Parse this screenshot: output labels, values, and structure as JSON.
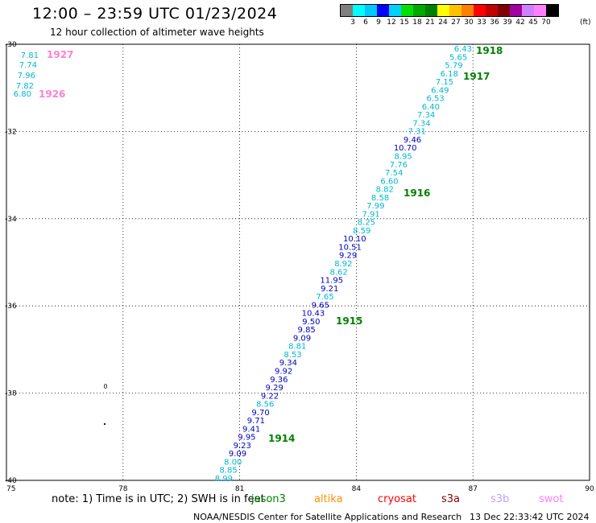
{
  "header": {
    "title": "12:00 – 23:59 UTC 01/23/2024",
    "subtitle": "12 hour collection of altimeter wave heights"
  },
  "legend": {
    "colors": [
      "#7f7f7f",
      "#00ffff",
      "#00c8ff",
      "#0000ff",
      "#00d0ff",
      "#00e000",
      "#00a800",
      "#008000",
      "#ffff00",
      "#ffc000",
      "#ff8000",
      "#ff0000",
      "#c00000",
      "#800000",
      "#a000a0",
      "#d080ff",
      "#ff80ff",
      "#000000"
    ],
    "tick_labels": [
      "3",
      "6",
      "9",
      "12",
      "15",
      "18",
      "21",
      "24",
      "27",
      "30",
      "33",
      "36",
      "39",
      "42",
      "45",
      "70"
    ],
    "unit": "(ft)"
  },
  "map": {
    "x_axis": {
      "min": 75,
      "max": 90,
      "ticks": [
        "75",
        "78",
        "81",
        "84",
        "87",
        "90"
      ]
    },
    "y_axis": {
      "min": -40,
      "max": -30,
      "ticks": [
        "-30",
        "-32",
        "-34",
        "-36",
        "-38",
        "-40"
      ]
    },
    "grid": "dotted",
    "readings": [
      {
        "v": "6.43",
        "c": "#00b8d0"
      },
      {
        "v": "5.65",
        "c": "#00b8d0"
      },
      {
        "v": "5.79",
        "c": "#00b8d0"
      },
      {
        "v": "6.18",
        "c": "#00b8d0"
      },
      {
        "v": "7.15",
        "c": "#00b8d0"
      },
      {
        "v": "6.49",
        "c": "#00b8d0"
      },
      {
        "v": "6.53",
        "c": "#00b8d0"
      },
      {
        "v": "6.40",
        "c": "#00b8d0"
      },
      {
        "v": "7.34",
        "c": "#00b8d0"
      },
      {
        "v": "7.34",
        "c": "#00b8d0"
      },
      {
        "v": "7.31",
        "c": "#00b8d0"
      },
      {
        "v": "9.46",
        "c": "#0000c0"
      },
      {
        "v": "10.70",
        "c": "#0000c0"
      },
      {
        "v": "8.95",
        "c": "#00b8d0"
      },
      {
        "v": "7.76",
        "c": "#00b8d0"
      },
      {
        "v": "7.54",
        "c": "#00b8d0"
      },
      {
        "v": "6.60",
        "c": "#00b8d0"
      },
      {
        "v": "8.82",
        "c": "#00b8d0"
      },
      {
        "v": "8.58",
        "c": "#00b8d0"
      },
      {
        "v": "7.99",
        "c": "#00b8d0"
      },
      {
        "v": "7.91",
        "c": "#00b8d0"
      },
      {
        "v": "8.25",
        "c": "#00b8d0"
      },
      {
        "v": "8.59",
        "c": "#00b8d0"
      },
      {
        "v": "10.10",
        "c": "#0000c0"
      },
      {
        "v": "10.51",
        "c": "#0000c0"
      },
      {
        "v": "9.29",
        "c": "#0000c0"
      },
      {
        "v": "8.92",
        "c": "#00b8d0"
      },
      {
        "v": "8.62",
        "c": "#00b8d0"
      },
      {
        "v": "11.95",
        "c": "#0000c0"
      },
      {
        "v": "9.21",
        "c": "#0000c0"
      },
      {
        "v": "7.65",
        "c": "#00b8d0"
      },
      {
        "v": "9.65",
        "c": "#0000c0"
      },
      {
        "v": "10.43",
        "c": "#0000c0"
      },
      {
        "v": "9.50",
        "c": "#0000c0"
      },
      {
        "v": "9.85",
        "c": "#0000c0"
      },
      {
        "v": "9.09",
        "c": "#0000c0"
      },
      {
        "v": "8.81",
        "c": "#00b8d0"
      },
      {
        "v": "8.53",
        "c": "#00b8d0"
      },
      {
        "v": "9.34",
        "c": "#0000c0"
      },
      {
        "v": "9.92",
        "c": "#0000c0"
      },
      {
        "v": "9.36",
        "c": "#0000c0"
      },
      {
        "v": "9.29",
        "c": "#0000c0"
      },
      {
        "v": "9.22",
        "c": "#0000c0"
      },
      {
        "v": "8.56",
        "c": "#00b8d0"
      },
      {
        "v": "9.70",
        "c": "#0000c0"
      },
      {
        "v": "9.71",
        "c": "#0000c0"
      },
      {
        "v": "9.41",
        "c": "#0000c0"
      },
      {
        "v": "9.95",
        "c": "#0000c0"
      },
      {
        "v": "9.23",
        "c": "#0000c0"
      },
      {
        "v": "9.09",
        "c": "#0000c0"
      },
      {
        "v": "8.00",
        "c": "#00b8d0"
      },
      {
        "v": "8.85",
        "c": "#00b8d0"
      },
      {
        "v": "8.99",
        "c": "#00b8d0"
      }
    ],
    "west_readings": [
      {
        "v": "7.81",
        "c": "#00b8d0"
      },
      {
        "v": "7.74",
        "c": "#00b8d0"
      },
      {
        "v": "7.96",
        "c": "#00b8d0"
      },
      {
        "v": "7.82",
        "c": "#00b8d0"
      },
      {
        "v": "6.80",
        "c": "#00b8d0"
      }
    ],
    "track_labels": [
      {
        "t": "1918",
        "c": "#008000"
      },
      {
        "t": "1917",
        "c": "#008000"
      },
      {
        "t": "1916",
        "c": "#008000"
      },
      {
        "t": "1915",
        "c": "#008000"
      },
      {
        "t": "1914",
        "c": "#008000"
      },
      {
        "t": "1927",
        "c": "#ff80d0"
      },
      {
        "t": "1926",
        "c": "#ff80d0"
      }
    ]
  },
  "note": "note:  1) Time is in UTC; 2) SWH is in feet",
  "satellites": [
    {
      "name": "jason3",
      "color": "#008000"
    },
    {
      "name": "altika",
      "color": "#ff9000"
    },
    {
      "name": "cryosat",
      "color": "#ff0000"
    },
    {
      "name": "s3a",
      "color": "#800000"
    },
    {
      "name": "s3b",
      "color": "#c0a0ff"
    },
    {
      "name": "swot",
      "color": "#ff80ff"
    }
  ],
  "footer": {
    "org": "NOAA/NESDIS Center for Satellite Applications and Research",
    "timestamp": "13 Dec 22:33:42 UTC 2024"
  }
}
